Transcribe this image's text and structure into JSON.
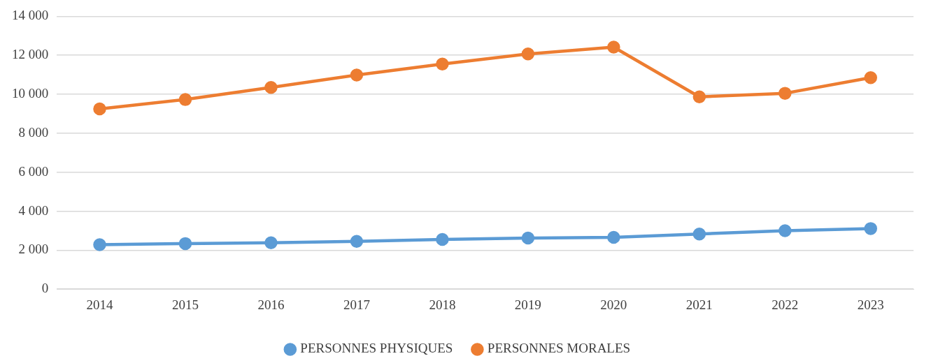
{
  "chart_data": {
    "type": "line",
    "categories": [
      "2014",
      "2015",
      "2016",
      "2017",
      "2018",
      "2019",
      "2020",
      "2021",
      "2022",
      "2023"
    ],
    "series": [
      {
        "name": "PERSONNES PHYSIQUES",
        "color": "#5b9bd5",
        "values": [
          2280,
          2340,
          2380,
          2450,
          2550,
          2620,
          2660,
          2830,
          3000,
          3110
        ]
      },
      {
        "name": "PERSONNES MORALES",
        "color": "#ed7d31",
        "values": [
          9250,
          9730,
          10350,
          10990,
          11550,
          12070,
          12420,
          9870,
          10050,
          10850
        ]
      }
    ],
    "ylim": [
      0,
      14000
    ],
    "yticks": [
      {
        "value": 0,
        "label": "0"
      },
      {
        "value": 2000,
        "label": "2 000"
      },
      {
        "value": 4000,
        "label": "4 000"
      },
      {
        "value": 6000,
        "label": "6 000"
      },
      {
        "value": 8000,
        "label": "8 000"
      },
      {
        "value": 10000,
        "label": "10 000"
      },
      {
        "value": 12000,
        "label": "12 000"
      },
      {
        "value": 14000,
        "label": "14 000"
      }
    ],
    "grid": "y",
    "legend": "bottom",
    "marker": "circle",
    "line_style": "solid"
  }
}
